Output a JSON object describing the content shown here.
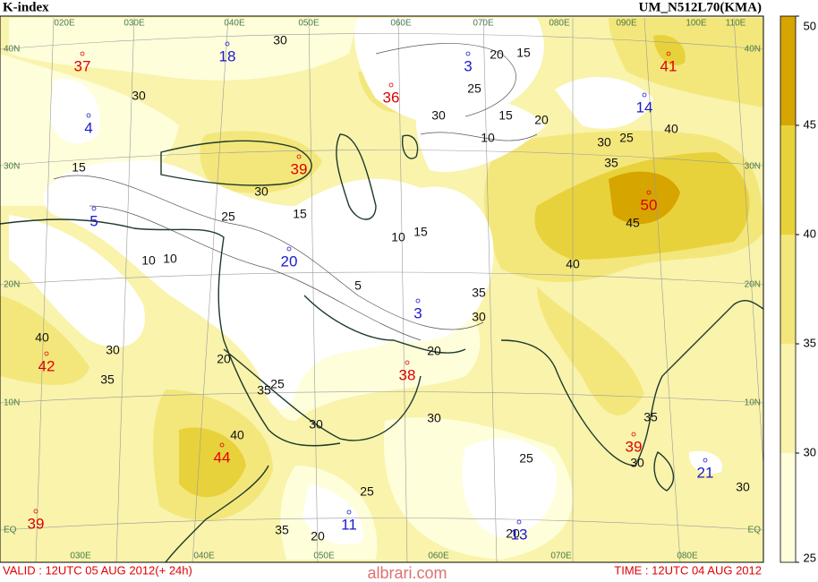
{
  "header": {
    "title": "K-index",
    "model": "UM_N512L70(KMA)"
  },
  "footer": {
    "valid": "VALID : 12UTC 05 AUG 2012(+ 24h)",
    "time": "TIME : 12UTC 04 AUG 2012",
    "watermark": "albrari.com"
  },
  "colorbar": {
    "ticks": [
      50,
      45,
      40,
      35,
      30,
      25
    ],
    "colors": [
      "#d6a500",
      "#e8d23c",
      "#f3e77c",
      "#f9f3ac",
      "#fefedb"
    ]
  },
  "longitudes_top": [
    "020E",
    "030E",
    "040E",
    "050E",
    "060E",
    "070E",
    "080E",
    "090E",
    "100E",
    "110E"
  ],
  "longitudes_bottom": [
    "030E",
    "040E",
    "050E",
    "060E",
    "070E",
    "080E"
  ],
  "latitudes": [
    "40N",
    "30N",
    "20N",
    "10N",
    "EQ"
  ],
  "highs": {
    "color": "#e00000",
    "values": [
      37,
      36,
      41,
      39,
      50,
      42,
      38,
      44,
      39,
      39
    ]
  },
  "lows": {
    "color": "#1a1acc",
    "values": [
      18,
      3,
      4,
      14,
      5,
      20,
      3,
      11,
      13,
      21
    ]
  },
  "contour_labels": [
    30,
    30,
    15,
    10,
    10,
    40,
    30,
    35,
    30,
    25,
    15,
    5,
    10,
    15,
    30,
    10,
    15,
    20,
    25,
    20,
    15,
    40,
    30,
    25,
    35,
    40,
    45,
    20,
    30,
    30,
    35,
    25,
    25,
    40,
    25,
    35,
    30,
    30,
    35,
    30,
    20,
    20,
    35,
    20
  ]
}
